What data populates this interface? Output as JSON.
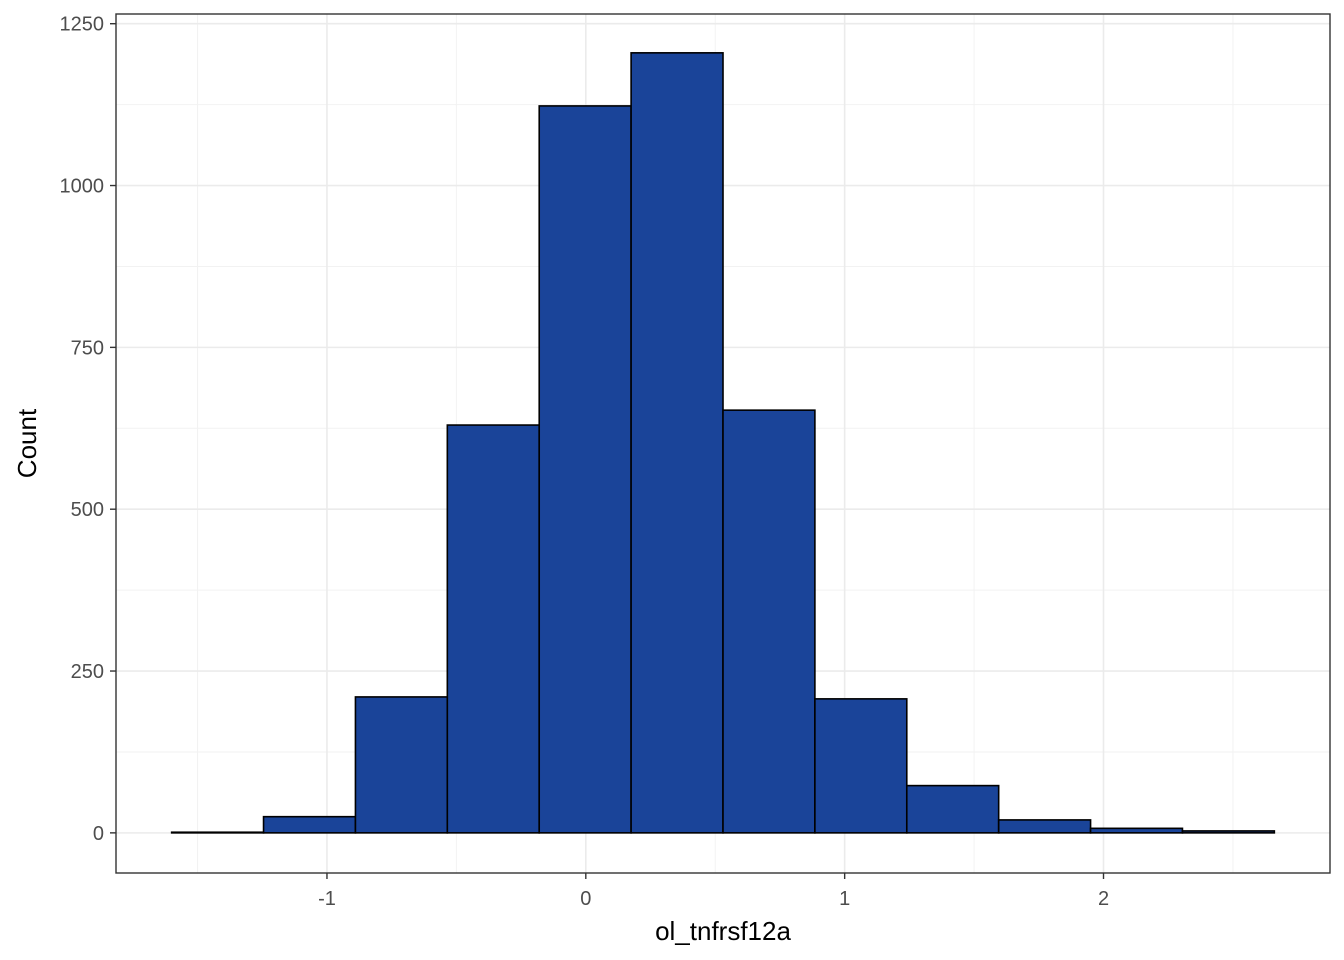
{
  "chart_data": {
    "type": "bar",
    "subtype": "histogram",
    "title": "",
    "xlabel": "ol_tnfrsf12a",
    "ylabel": "Count",
    "bins": [
      {
        "x0": -1.6,
        "x1": -1.245,
        "count": 1
      },
      {
        "x0": -1.245,
        "x1": -0.89,
        "count": 25
      },
      {
        "x0": -0.89,
        "x1": -0.535,
        "count": 210
      },
      {
        "x0": -0.535,
        "x1": -0.18,
        "count": 630
      },
      {
        "x0": -0.18,
        "x1": 0.175,
        "count": 1123
      },
      {
        "x0": 0.175,
        "x1": 0.53,
        "count": 1205
      },
      {
        "x0": 0.53,
        "x1": 0.885,
        "count": 653
      },
      {
        "x0": 0.885,
        "x1": 1.24,
        "count": 207
      },
      {
        "x0": 1.24,
        "x1": 1.595,
        "count": 73
      },
      {
        "x0": 1.595,
        "x1": 1.95,
        "count": 20
      },
      {
        "x0": 1.95,
        "x1": 2.305,
        "count": 7
      },
      {
        "x0": 2.305,
        "x1": 2.66,
        "count": 3
      }
    ],
    "xlim": [
      -1.815,
      2.875
    ],
    "ylim": [
      -62,
      1265
    ],
    "x_ticks": [
      -1,
      0,
      1,
      2
    ],
    "x_tick_labels": [
      "-1",
      "0",
      "1",
      "2"
    ],
    "y_ticks": [
      0,
      250,
      500,
      750,
      1000,
      1250
    ],
    "y_tick_labels": [
      "0",
      "250",
      "500",
      "750",
      "1000",
      "1250"
    ],
    "grid": true,
    "legend": "none",
    "colors": {
      "bar_fill": "#1a4499",
      "bar_stroke": "#000000",
      "grid_major": "#ebebeb",
      "grid_minor": "#f2f2f2",
      "panel_border": "#333333",
      "tick_text": "#4d4d4d"
    }
  }
}
